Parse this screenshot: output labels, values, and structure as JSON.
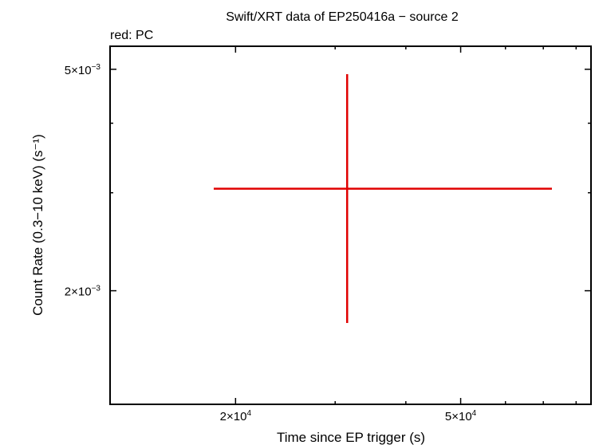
{
  "chart_data": {
    "type": "scatter",
    "title": "Swift/XRT data of EP250416a − source 2",
    "subtitle": "red: PC",
    "xlabel": "Time since EP trigger (s)",
    "ylabel": "Count Rate (0.3−10 keV) (s⁻¹)",
    "x_scale": "log",
    "y_scale": "log",
    "xlim": [
      12000,
      85000
    ],
    "ylim": [
      0.00125,
      0.0055
    ],
    "x_major_ticks": [
      {
        "value": 20000,
        "mantissa": "2×10",
        "exp": "4"
      },
      {
        "value": 50000,
        "mantissa": "5×10",
        "exp": "4"
      }
    ],
    "y_major_ticks": [
      {
        "value": 0.002,
        "mantissa": "2×10",
        "exp": "−3"
      },
      {
        "value": 0.005,
        "mantissa": "5×10",
        "exp": "−3"
      }
    ],
    "x_minor_ticks": [
      30000,
      40000,
      60000,
      70000,
      80000
    ],
    "y_minor_ticks": [
      0.003,
      0.004
    ],
    "grid": false,
    "series": [
      {
        "color": "#e00000",
        "points": [
          {
            "x": 31500,
            "x_low": 18300,
            "x_high": 72500,
            "y": 0.00305,
            "y_low": 0.00175,
            "y_high": 0.0049
          }
        ]
      }
    ]
  }
}
